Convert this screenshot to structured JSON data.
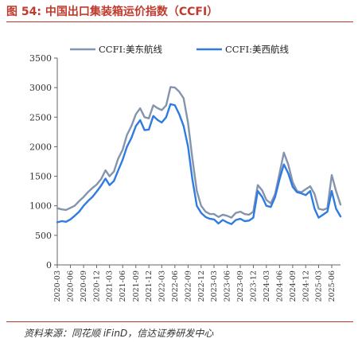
{
  "figure": {
    "title": "图 54:  中国出口集装箱运价指数（CCFI）",
    "source": "资料来源：同花顺 iFinD，信达证券研发中心"
  },
  "colors": {
    "accent": "#c0392b",
    "east": "#8494ad",
    "west": "#2f7be0",
    "axis": "#666666"
  },
  "chart_data": {
    "type": "line",
    "title": "",
    "xlabel": "",
    "ylabel": "",
    "ylim": [
      0,
      3500
    ],
    "y_ticks": [
      "0",
      "500",
      "1000",
      "1500",
      "2000",
      "2500",
      "3000",
      "3500"
    ],
    "x_tick_labels": [
      "2020-03",
      "2020-06",
      "2020-09",
      "2020-12",
      "2021-03",
      "2021-06",
      "2021-09",
      "2021-12",
      "2022-03",
      "2022-06",
      "2022-09",
      "2022-12",
      "2023-03",
      "2023-06",
      "2023-09",
      "2023-12",
      "2024-03",
      "2024-06",
      "2024-09",
      "2024-12",
      "2025-03",
      "2025-06"
    ],
    "x_range": [
      "2020-03",
      "2025-08"
    ],
    "grid": false,
    "legend_position": "top",
    "series": [
      {
        "name": "CCFI:美东航线",
        "color": "#8494ad",
        "points": [
          [
            "2020-03-01",
            960
          ],
          [
            "2020-04-01",
            940
          ],
          [
            "2020-05-01",
            930
          ],
          [
            "2020-06-01",
            965
          ],
          [
            "2020-07-01",
            1000
          ],
          [
            "2020-08-01",
            1080
          ],
          [
            "2020-09-01",
            1150
          ],
          [
            "2020-10-01",
            1230
          ],
          [
            "2020-11-01",
            1300
          ],
          [
            "2020-12-01",
            1360
          ],
          [
            "2021-01-01",
            1450
          ],
          [
            "2021-02-01",
            1600
          ],
          [
            "2021-03-01",
            1500
          ],
          [
            "2021-04-01",
            1580
          ],
          [
            "2021-05-01",
            1800
          ],
          [
            "2021-06-01",
            1950
          ],
          [
            "2021-07-01",
            2200
          ],
          [
            "2021-08-01",
            2350
          ],
          [
            "2021-09-01",
            2550
          ],
          [
            "2021-10-01",
            2650
          ],
          [
            "2021-11-01",
            2500
          ],
          [
            "2021-12-01",
            2480
          ],
          [
            "2022-01-01",
            2700
          ],
          [
            "2022-02-01",
            2650
          ],
          [
            "2022-03-01",
            2620
          ],
          [
            "2022-04-01",
            2700
          ],
          [
            "2022-05-01",
            3010
          ],
          [
            "2022-06-01",
            3000
          ],
          [
            "2022-07-01",
            2930
          ],
          [
            "2022-08-01",
            2820
          ],
          [
            "2022-09-01",
            2400
          ],
          [
            "2022-10-01",
            1800
          ],
          [
            "2022-11-01",
            1250
          ],
          [
            "2022-12-01",
            1000
          ],
          [
            "2023-01-01",
            900
          ],
          [
            "2023-02-01",
            860
          ],
          [
            "2023-03-01",
            860
          ],
          [
            "2023-04-01",
            810
          ],
          [
            "2023-05-01",
            850
          ],
          [
            "2023-06-01",
            830
          ],
          [
            "2023-07-01",
            800
          ],
          [
            "2023-08-01",
            880
          ],
          [
            "2023-09-01",
            900
          ],
          [
            "2023-10-01",
            860
          ],
          [
            "2023-11-01",
            850
          ],
          [
            "2023-12-01",
            900
          ],
          [
            "2024-01-01",
            1350
          ],
          [
            "2024-02-01",
            1260
          ],
          [
            "2024-03-01",
            1100
          ],
          [
            "2024-04-01",
            1040
          ],
          [
            "2024-05-01",
            1200
          ],
          [
            "2024-06-01",
            1550
          ],
          [
            "2024-07-01",
            1900
          ],
          [
            "2024-08-01",
            1700
          ],
          [
            "2024-09-01",
            1400
          ],
          [
            "2024-10-01",
            1250
          ],
          [
            "2024-11-01",
            1230
          ],
          [
            "2024-12-01",
            1280
          ],
          [
            "2025-01-01",
            1330
          ],
          [
            "2025-02-01",
            1200
          ],
          [
            "2025-03-01",
            950
          ],
          [
            "2025-04-01",
            930
          ],
          [
            "2025-05-01",
            960
          ],
          [
            "2025-06-01",
            1520
          ],
          [
            "2025-07-01",
            1250
          ],
          [
            "2025-08-01",
            1020
          ]
        ]
      },
      {
        "name": "CCFI:美西航线",
        "color": "#2f7be0",
        "points": [
          [
            "2020-03-01",
            720
          ],
          [
            "2020-04-01",
            740
          ],
          [
            "2020-05-01",
            730
          ],
          [
            "2020-06-01",
            770
          ],
          [
            "2020-07-01",
            830
          ],
          [
            "2020-08-01",
            900
          ],
          [
            "2020-09-01",
            1000
          ],
          [
            "2020-10-01",
            1080
          ],
          [
            "2020-11-01",
            1150
          ],
          [
            "2020-12-01",
            1240
          ],
          [
            "2021-01-01",
            1340
          ],
          [
            "2021-02-01",
            1460
          ],
          [
            "2021-03-01",
            1350
          ],
          [
            "2021-04-01",
            1420
          ],
          [
            "2021-05-01",
            1600
          ],
          [
            "2021-06-01",
            1780
          ],
          [
            "2021-07-01",
            2000
          ],
          [
            "2021-08-01",
            2150
          ],
          [
            "2021-09-01",
            2350
          ],
          [
            "2021-10-01",
            2450
          ],
          [
            "2021-11-01",
            2280
          ],
          [
            "2021-12-01",
            2290
          ],
          [
            "2022-01-01",
            2520
          ],
          [
            "2022-02-01",
            2450
          ],
          [
            "2022-03-01",
            2410
          ],
          [
            "2022-04-01",
            2500
          ],
          [
            "2022-05-01",
            2720
          ],
          [
            "2022-06-01",
            2700
          ],
          [
            "2022-07-01",
            2550
          ],
          [
            "2022-08-01",
            2350
          ],
          [
            "2022-09-01",
            2000
          ],
          [
            "2022-10-01",
            1450
          ],
          [
            "2022-11-01",
            1000
          ],
          [
            "2022-12-01",
            880
          ],
          [
            "2023-01-01",
            810
          ],
          [
            "2023-02-01",
            780
          ],
          [
            "2023-03-01",
            770
          ],
          [
            "2023-04-01",
            700
          ],
          [
            "2023-05-01",
            760
          ],
          [
            "2023-06-01",
            720
          ],
          [
            "2023-07-01",
            690
          ],
          [
            "2023-08-01",
            760
          ],
          [
            "2023-09-01",
            780
          ],
          [
            "2023-10-01",
            740
          ],
          [
            "2023-11-01",
            750
          ],
          [
            "2023-12-01",
            800
          ],
          [
            "2024-01-01",
            1250
          ],
          [
            "2024-02-01",
            1150
          ],
          [
            "2024-03-01",
            1000
          ],
          [
            "2024-04-01",
            980
          ],
          [
            "2024-05-01",
            1150
          ],
          [
            "2024-06-01",
            1450
          ],
          [
            "2024-07-01",
            1700
          ],
          [
            "2024-08-01",
            1550
          ],
          [
            "2024-09-01",
            1320
          ],
          [
            "2024-10-01",
            1230
          ],
          [
            "2024-11-01",
            1210
          ],
          [
            "2024-12-01",
            1180
          ],
          [
            "2025-01-01",
            1250
          ],
          [
            "2025-02-01",
            950
          ],
          [
            "2025-03-01",
            800
          ],
          [
            "2025-04-01",
            850
          ],
          [
            "2025-05-01",
            900
          ],
          [
            "2025-06-01",
            1250
          ],
          [
            "2025-07-01",
            950
          ],
          [
            "2025-08-01",
            820
          ]
        ]
      }
    ]
  }
}
